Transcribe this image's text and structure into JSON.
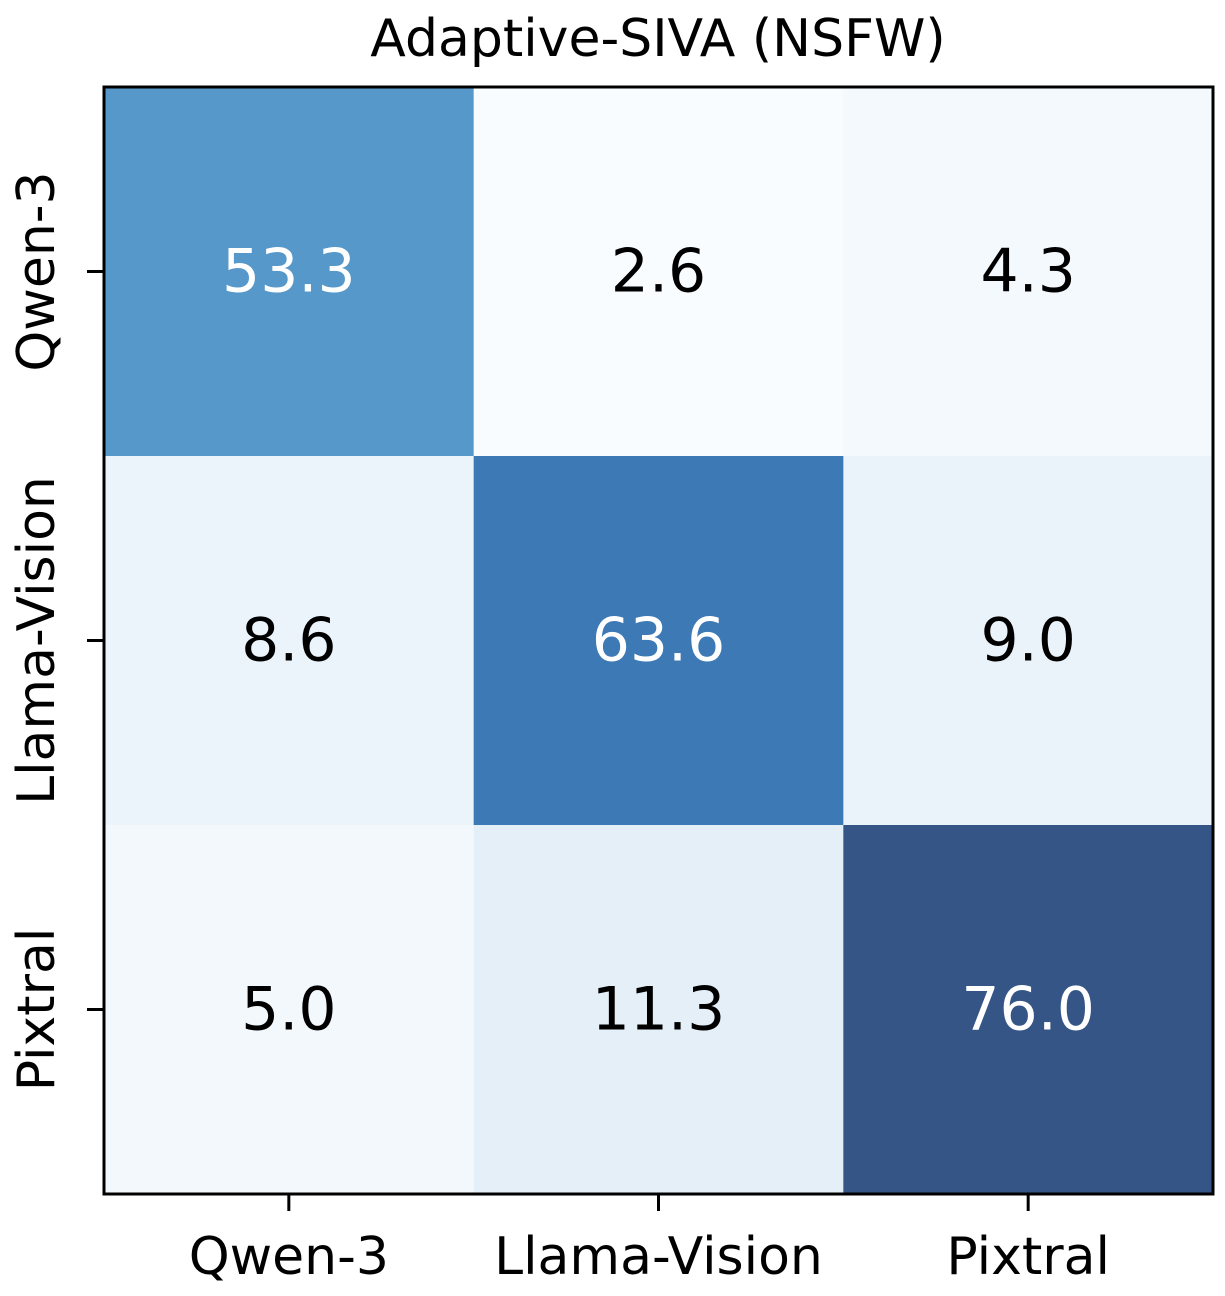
{
  "chart_data": {
    "type": "heatmap",
    "title": "Adaptive-SIVA (NSFW)",
    "xlabel": "",
    "ylabel": "",
    "x_categories": [
      "Qwen-3",
      "Llama-Vision",
      "Pixtral"
    ],
    "y_categories": [
      "Qwen-3",
      "Llama-Vision",
      "Pixtral"
    ],
    "values": [
      [
        53.3,
        2.6,
        4.3
      ],
      [
        8.6,
        63.6,
        9.0
      ],
      [
        5.0,
        11.3,
        76.0
      ]
    ],
    "cell_labels": [
      [
        "53.3",
        "2.6",
        "4.3"
      ],
      [
        "8.6",
        "63.6",
        "9.0"
      ],
      [
        "5.0",
        "11.3",
        "76.0"
      ]
    ],
    "colormap": "Blues",
    "colorbar": false,
    "grid": false
  }
}
